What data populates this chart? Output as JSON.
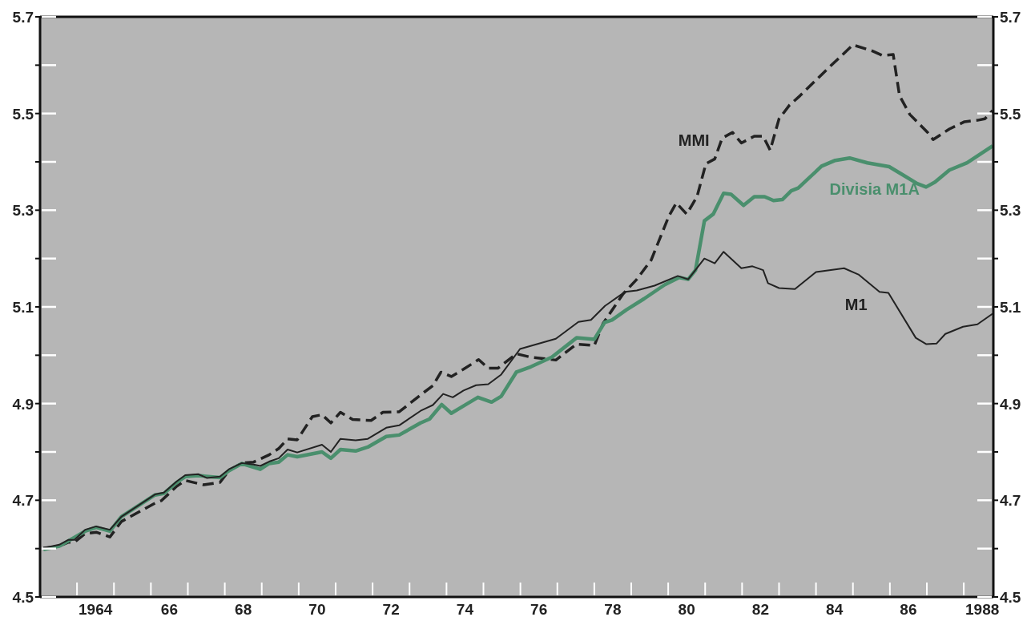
{
  "chart_data": {
    "type": "line",
    "xlim": [
      1962.5,
      1988.3
    ],
    "ylim": [
      4.5,
      5.7
    ],
    "y2lim": [
      4.5,
      5.7
    ],
    "xticks": [
      {
        "value": 1963.5,
        "label": null
      },
      1964,
      {
        "value": 1964.5,
        "label": null
      },
      {
        "value": 1965.5,
        "label": null
      },
      {
        "value": 1966,
        "label": "66"
      },
      {
        "value": 1966.5,
        "label": null
      },
      {
        "value": 1967.5,
        "label": null
      },
      {
        "value": 1968,
        "label": "68"
      },
      {
        "value": 1968.5,
        "label": null
      },
      {
        "value": 1969.5,
        "label": null
      },
      {
        "value": 1970,
        "label": "70"
      },
      {
        "value": 1970.5,
        "label": null
      },
      {
        "value": 1971.5,
        "label": null
      },
      {
        "value": 1972,
        "label": "72"
      },
      {
        "value": 1972.5,
        "label": null
      },
      {
        "value": 1973.5,
        "label": null
      },
      {
        "value": 1974,
        "label": "74"
      },
      {
        "value": 1974.5,
        "label": null
      },
      {
        "value": 1975.5,
        "label": null
      },
      {
        "value": 1976,
        "label": "76"
      },
      {
        "value": 1976.5,
        "label": null
      },
      {
        "value": 1977.5,
        "label": null
      },
      {
        "value": 1978,
        "label": "78"
      },
      {
        "value": 1978.5,
        "label": null
      },
      {
        "value": 1979.5,
        "label": null
      },
      {
        "value": 1980,
        "label": "80"
      },
      {
        "value": 1980.5,
        "label": null
      },
      {
        "value": 1981.5,
        "label": null
      },
      {
        "value": 1982,
        "label": "82"
      },
      {
        "value": 1982.5,
        "label": null
      },
      {
        "value": 1983.5,
        "label": null
      },
      {
        "value": 1984,
        "label": "84"
      },
      {
        "value": 1984.5,
        "label": null
      },
      {
        "value": 1985.5,
        "label": null
      },
      {
        "value": 1986,
        "label": "86"
      },
      {
        "value": 1986.5,
        "label": null
      },
      {
        "value": 1987.5,
        "label": null
      },
      1988
    ],
    "yticks": [
      4.5,
      {
        "value": 4.6,
        "label": null
      },
      4.7,
      {
        "value": 4.8,
        "label": null
      },
      4.9,
      {
        "value": 5.0,
        "label": null
      },
      5.1,
      {
        "value": 5.2,
        "label": null
      },
      5.3,
      {
        "value": 5.4,
        "label": null
      },
      5.5,
      {
        "value": 5.6,
        "label": null
      },
      5.7
    ],
    "y2ticks": [
      4.5,
      {
        "value": 4.6,
        "label": null
      },
      4.7,
      {
        "value": 4.8,
        "label": null
      },
      4.9,
      {
        "value": 5.0,
        "label": null
      },
      5.1,
      {
        "value": 5.2,
        "label": null
      },
      5.3,
      {
        "value": 5.4,
        "label": null
      },
      5.5,
      {
        "value": 5.6,
        "label": null
      },
      5.7
    ],
    "series": [
      {
        "name": "MMI",
        "color": "#222222",
        "line_style": "dashed",
        "x": [
          1962.59,
          1963.02,
          1963.26,
          1963.43,
          1963.72,
          1964.02,
          1964.39,
          1964.7,
          1965.61,
          1965.78,
          1966.2,
          1966.43,
          1966.93,
          1967.37,
          1967.61,
          1967.96,
          1968.28,
          1968.7,
          1968.96,
          1969.2,
          1969.46,
          1969.87,
          1970.13,
          1970.37,
          1970.63,
          1970.96,
          1971.46,
          1971.78,
          1972.22,
          1972.8,
          1973.13,
          1973.35,
          1973.63,
          1973.96,
          1974.37,
          1974.63,
          1974.89,
          1975.39,
          1975.78,
          1976.46,
          1977.02,
          1977.5,
          1977.74,
          1978.28,
          1978.65,
          1979.04,
          1979.52,
          1979.72,
          1980.0,
          1980.28,
          1980.52,
          1980.76,
          1980.96,
          1981.24,
          1981.48,
          1981.83,
          1982.07,
          1982.26,
          1982.5,
          1982.78,
          1983.07,
          1983.78,
          1984.5,
          1985.04,
          1985.3,
          1985.59,
          1985.76,
          1986.04,
          1986.52,
          1986.67,
          1987.11,
          1987.52,
          1987.87,
          1988.07,
          1988.28
        ],
        "values": [
          4.601,
          4.605,
          4.613,
          4.613,
          4.631,
          4.634,
          4.624,
          4.656,
          4.694,
          4.699,
          4.729,
          4.741,
          4.732,
          4.737,
          4.761,
          4.777,
          4.779,
          4.794,
          4.807,
          4.827,
          4.825,
          4.873,
          4.877,
          4.86,
          4.882,
          4.867,
          4.865,
          4.882,
          4.883,
          4.918,
          4.937,
          4.965,
          4.956,
          4.971,
          4.991,
          4.973,
          4.973,
          5.003,
          4.996,
          4.99,
          5.023,
          5.02,
          5.066,
          5.127,
          5.157,
          5.197,
          5.288,
          5.315,
          5.292,
          5.328,
          5.396,
          5.406,
          5.449,
          5.461,
          5.439,
          5.453,
          5.453,
          5.424,
          5.489,
          5.517,
          5.537,
          5.59,
          5.642,
          5.629,
          5.62,
          5.622,
          5.537,
          5.498,
          5.461,
          5.446,
          5.468,
          5.483,
          5.486,
          5.489,
          5.506
        ]
      },
      {
        "name": "Divisia M1A",
        "color": "#4a8f6d",
        "line_style": "solid",
        "x": [
          1962.59,
          1963.02,
          1963.72,
          1964.02,
          1964.39,
          1964.7,
          1965.61,
          1965.85,
          1966.2,
          1966.43,
          1966.78,
          1967.37,
          1967.61,
          1967.96,
          1968.46,
          1968.7,
          1968.96,
          1969.2,
          1969.46,
          1970.13,
          1970.37,
          1970.63,
          1971.04,
          1971.37,
          1971.87,
          1972.22,
          1972.8,
          1973.04,
          1973.37,
          1973.63,
          1973.96,
          1974.35,
          1974.72,
          1974.98,
          1975.39,
          1975.78,
          1976.35,
          1977.02,
          1977.5,
          1977.78,
          1977.98,
          1978.37,
          1978.85,
          1979.41,
          1979.8,
          1980.04,
          1980.24,
          1980.48,
          1980.72,
          1981.0,
          1981.2,
          1981.54,
          1981.83,
          1982.11,
          1982.35,
          1982.59,
          1982.83,
          1983.02,
          1983.65,
          1984.02,
          1984.41,
          1984.89,
          1985.48,
          1985.85,
          1986.24,
          1986.48,
          1986.72,
          1987.11,
          1987.59,
          1988.28
        ],
        "values": [
          4.598,
          4.605,
          4.636,
          4.644,
          4.636,
          4.666,
          4.711,
          4.714,
          4.737,
          4.749,
          4.751,
          4.747,
          4.761,
          4.776,
          4.764,
          4.776,
          4.779,
          4.794,
          4.79,
          4.8,
          4.787,
          4.805,
          4.802,
          4.81,
          4.832,
          4.835,
          4.86,
          4.868,
          4.898,
          4.88,
          4.895,
          4.913,
          4.903,
          4.915,
          4.965,
          4.976,
          4.996,
          5.036,
          5.033,
          5.068,
          5.073,
          5.094,
          5.117,
          5.146,
          5.161,
          5.157,
          5.176,
          5.278,
          5.292,
          5.335,
          5.333,
          5.31,
          5.328,
          5.328,
          5.32,
          5.322,
          5.34,
          5.346,
          5.391,
          5.403,
          5.408,
          5.398,
          5.39,
          5.373,
          5.355,
          5.348,
          5.358,
          5.383,
          5.398,
          5.433
        ]
      },
      {
        "name": "M1",
        "color": "#222222",
        "line_style": "solid",
        "x": [
          1962.59,
          1963.02,
          1963.26,
          1963.43,
          1963.72,
          1964.02,
          1964.39,
          1964.7,
          1965.61,
          1965.85,
          1966.2,
          1966.43,
          1966.78,
          1967.02,
          1967.37,
          1967.61,
          1967.96,
          1968.28,
          1968.46,
          1968.7,
          1968.96,
          1969.2,
          1969.46,
          1970.13,
          1970.37,
          1970.63,
          1971.04,
          1971.37,
          1971.87,
          1972.22,
          1972.8,
          1973.13,
          1973.41,
          1973.67,
          1973.96,
          1974.3,
          1974.63,
          1974.98,
          1975.49,
          1976.46,
          1977.07,
          1977.41,
          1977.79,
          1978.33,
          1978.65,
          1979.13,
          1979.76,
          1980.04,
          1980.48,
          1980.76,
          1981.0,
          1981.48,
          1981.78,
          1982.07,
          1982.2,
          1982.5,
          1982.93,
          1983.5,
          1984.26,
          1984.65,
          1985.22,
          1985.46,
          1986.2,
          1986.48,
          1986.76,
          1987.0,
          1987.48,
          1987.87,
          1988.28
        ],
        "values": [
          4.601,
          4.608,
          4.618,
          4.618,
          4.639,
          4.646,
          4.639,
          4.666,
          4.712,
          4.716,
          4.739,
          4.752,
          4.754,
          4.746,
          4.749,
          4.764,
          4.777,
          4.774,
          4.771,
          4.78,
          4.787,
          4.805,
          4.799,
          4.815,
          4.8,
          4.827,
          4.824,
          4.827,
          4.85,
          4.855,
          4.885,
          4.897,
          4.92,
          4.913,
          4.927,
          4.938,
          4.94,
          4.96,
          5.013,
          5.034,
          5.069,
          5.073,
          5.102,
          5.131,
          5.134,
          5.144,
          5.164,
          5.157,
          5.2,
          5.19,
          5.214,
          5.18,
          5.184,
          5.176,
          5.149,
          5.139,
          5.137,
          5.172,
          5.18,
          5.167,
          5.131,
          5.129,
          5.036,
          5.023,
          5.024,
          5.044,
          5.059,
          5.064,
          5.086
        ]
      }
    ]
  }
}
